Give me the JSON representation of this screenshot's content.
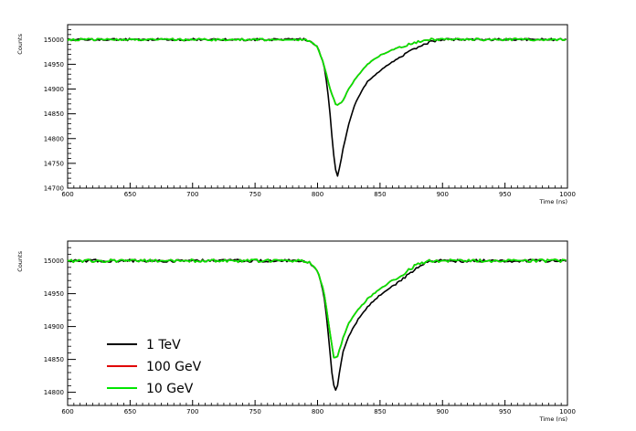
{
  "colors": {
    "1 TeV": "#000000",
    "100 GeV": "#e00000",
    "10 GeV": "#00e600"
  },
  "chart_data": [
    {
      "type": "line",
      "xlabel": "Time (ns)",
      "ylabel": "Counts",
      "xlim": [
        600,
        1000
      ],
      "ylim": [
        14700,
        15030
      ],
      "xticks": [
        "600",
        "650",
        "700",
        "750",
        "800",
        "850",
        "900",
        "950",
        "1000"
      ],
      "yticks": [
        "14700",
        "14750",
        "14800",
        "14850",
        "14900",
        "14950",
        "15000"
      ],
      "grid": false,
      "series": [
        {
          "name": "1 TeV",
          "x": [
            600,
            650,
            700,
            750,
            780,
            790,
            795,
            800,
            805,
            808,
            810,
            812,
            814,
            816,
            818,
            820,
            825,
            830,
            835,
            840,
            850,
            860,
            870,
            880,
            890,
            900,
            950,
            1000
          ],
          "y": [
            15000,
            15000,
            15000,
            15000,
            15000,
            15000,
            14995,
            14985,
            14950,
            14900,
            14850,
            14790,
            14740,
            14725,
            14745,
            14775,
            14830,
            14870,
            14895,
            14915,
            14937,
            14955,
            14970,
            14985,
            14995,
            15000,
            15000,
            15000
          ]
        },
        {
          "name": "100 GeV",
          "x": [
            600,
            650,
            700,
            750,
            780,
            790,
            795,
            800,
            805,
            810,
            815,
            820,
            825,
            830,
            840,
            850,
            860,
            870,
            880,
            890,
            900,
            950,
            1000
          ],
          "y": [
            15000,
            15000,
            15000,
            15000,
            15000,
            15000,
            14995,
            14985,
            14950,
            14900,
            14865,
            14875,
            14900,
            14920,
            14950,
            14968,
            14980,
            14988,
            14995,
            15000,
            15000,
            15000,
            15000
          ]
        },
        {
          "name": "10 GeV",
          "x": [
            600,
            650,
            700,
            750,
            780,
            790,
            795,
            800,
            805,
            810,
            815,
            820,
            825,
            830,
            840,
            850,
            860,
            870,
            880,
            890,
            900,
            950,
            1000
          ],
          "y": [
            15000,
            15000,
            15000,
            15000,
            15000,
            15000,
            14995,
            14985,
            14950,
            14900,
            14865,
            14875,
            14900,
            14920,
            14950,
            14968,
            14980,
            14988,
            14995,
            15000,
            15000,
            15000,
            15000
          ]
        }
      ]
    },
    {
      "type": "line",
      "xlabel": "Time (ns)",
      "ylabel": "Counts",
      "xlim": [
        600,
        1000
      ],
      "ylim": [
        14780,
        15030
      ],
      "xticks": [
        "600",
        "650",
        "700",
        "750",
        "800",
        "850",
        "900",
        "950",
        "1000"
      ],
      "yticks": [
        "14800",
        "14850",
        "14900",
        "14950",
        "15000"
      ],
      "grid": false,
      "legend": {
        "position": "bottom-left",
        "entries": [
          "1 TeV",
          "100 GeV",
          "10 GeV"
        ]
      },
      "series": [
        {
          "name": "1 TeV",
          "x": [
            600,
            650,
            700,
            750,
            780,
            790,
            795,
            800,
            805,
            808,
            810,
            812,
            814,
            816,
            818,
            820,
            825,
            830,
            835,
            840,
            850,
            860,
            870,
            880,
            890,
            900,
            950,
            1000
          ],
          "y": [
            15000,
            15000,
            15000,
            15000,
            15000,
            15000,
            14995,
            14985,
            14950,
            14900,
            14860,
            14820,
            14800,
            14810,
            14835,
            14860,
            14885,
            14903,
            14918,
            14930,
            14948,
            14962,
            14975,
            14990,
            15000,
            15000,
            15000,
            15000
          ]
        },
        {
          "name": "100 GeV",
          "x": [
            600,
            650,
            700,
            750,
            780,
            790,
            795,
            800,
            805,
            810,
            813,
            816,
            820,
            825,
            830,
            840,
            850,
            860,
            870,
            880,
            890,
            900,
            950,
            1000
          ],
          "y": [
            15000,
            15000,
            15000,
            15000,
            15000,
            15000,
            14995,
            14985,
            14955,
            14890,
            14852,
            14855,
            14880,
            14905,
            14920,
            14942,
            14958,
            14970,
            14982,
            14995,
            15000,
            15000,
            15000,
            15000
          ]
        },
        {
          "name": "10 GeV",
          "x": [
            600,
            650,
            700,
            750,
            780,
            790,
            795,
            800,
            805,
            810,
            813,
            816,
            820,
            825,
            830,
            840,
            850,
            860,
            870,
            880,
            890,
            900,
            950,
            1000
          ],
          "y": [
            15000,
            15000,
            15000,
            15000,
            15000,
            15000,
            14995,
            14985,
            14955,
            14890,
            14852,
            14855,
            14880,
            14905,
            14920,
            14942,
            14958,
            14970,
            14982,
            14995,
            15000,
            15000,
            15000,
            15000
          ]
        }
      ]
    }
  ]
}
